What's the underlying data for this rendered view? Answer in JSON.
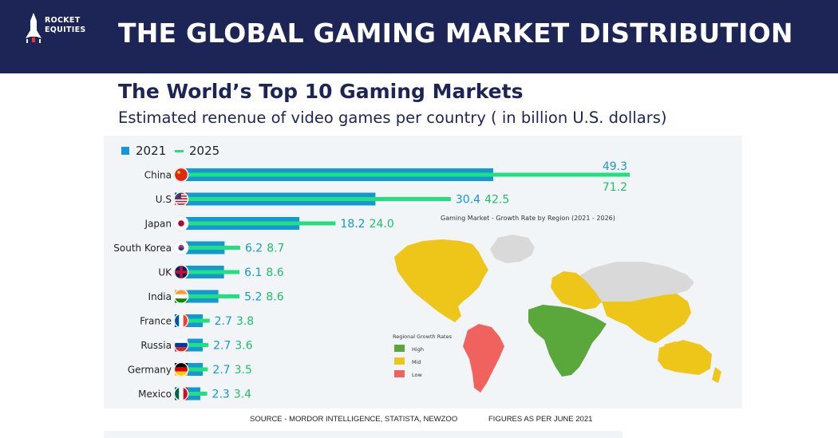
{
  "brand": {
    "line1": "ROCKET",
    "line2": "EQUITIES"
  },
  "header": {
    "title": "THE GLOBAL GAMING MARKET DISTRIBUTION"
  },
  "colors": {
    "banner": "#1d2556",
    "bar_2021": "#1597d5",
    "bar_2025": "#22e07e",
    "high": "#5aa83c",
    "mid": "#eec61a",
    "low": "#f0625e",
    "no_data": "#d9d9d9"
  },
  "chart_data": [
    {
      "type": "bar",
      "orientation": "horizontal",
      "title": "The World’s Top 10 Gaming Markets",
      "subtitle": "Estimated renenue of video games per country ( in billion U.S. dollars)",
      "legend": {
        "placement": "top-left",
        "entries": [
          "2021",
          "2025"
        ]
      },
      "categories": [
        "China",
        "U.S",
        "Japan",
        "South Korea",
        "UK",
        "India",
        "France",
        "Russia",
        "Germany",
        "Mexico"
      ],
      "series": [
        {
          "name": "2021",
          "values": [
            49.3,
            30.4,
            18.2,
            6.2,
            6.1,
            5.2,
            2.7,
            2.7,
            2.7,
            2.3
          ]
        },
        {
          "name": "2025",
          "values": [
            71.2,
            42.5,
            24.0,
            8.7,
            8.6,
            8.6,
            3.8,
            3.6,
            3.5,
            3.4
          ]
        }
      ],
      "data_labels": [
        [
          "49.3",
          "71.2"
        ],
        [
          "30.4",
          "42.5"
        ],
        [
          "18.2",
          "24.0"
        ],
        [
          "6.2",
          "8.7"
        ],
        [
          "6.1",
          "8.6"
        ],
        [
          "5.2",
          "8.6"
        ],
        [
          "2.7",
          "3.8"
        ],
        [
          "2.7",
          "3.6"
        ],
        [
          "2.7",
          "3.5"
        ],
        [
          "2.3",
          "3.4"
        ]
      ],
      "grid": false
    },
    {
      "type": "map",
      "title": "Gaming Market - Growth Rate by Region (2021 - 2026)",
      "legend": {
        "title": "Regional Growth Rates",
        "placement": "bottom-left",
        "entries": [
          "High",
          "Mid",
          "Low"
        ]
      },
      "regions": [
        {
          "region": "North America",
          "rate": "Mid"
        },
        {
          "region": "South America",
          "rate": "Low"
        },
        {
          "region": "Europe",
          "rate": "Mid"
        },
        {
          "region": "Africa and Middle East",
          "rate": "High"
        },
        {
          "region": "Asia Pacific",
          "rate": "Mid"
        }
      ]
    }
  ],
  "footer": {
    "source": "SOURCE -  MORDOR INTELLIGENCE, STATISTA, NEWZOO",
    "figures": "FIGURES AS PER JUNE 2021"
  }
}
